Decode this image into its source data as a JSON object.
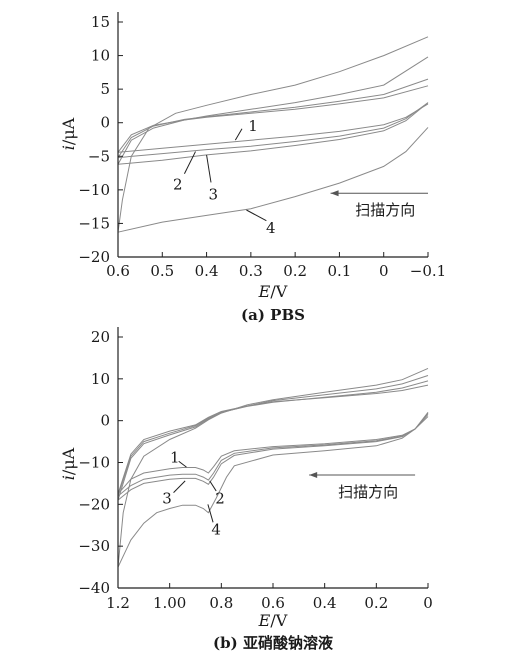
{
  "chart_data": [
    {
      "type": "line",
      "panel_caption": "(a) PBS",
      "xlabel_italic": "E",
      "xlabel_unit": "/V",
      "ylabel_italic": "i",
      "ylabel_unit": "/μA",
      "xlim": [
        0.6,
        -0.1
      ],
      "ylim": [
        -20,
        15
      ],
      "x_ticks": [
        0.6,
        0.5,
        0.4,
        0.3,
        0.2,
        0.1,
        0,
        -0.1
      ],
      "x_tick_labels": [
        "0.6",
        "0.5",
        "0.4",
        "0.3",
        "0.2",
        "0.1",
        "0",
        "−0.1"
      ],
      "y_ticks": [
        15,
        10,
        5,
        0,
        -5,
        -10,
        -15,
        -20
      ],
      "y_tick_labels": [
        "15",
        "10",
        "5",
        "0",
        "−5",
        "−10",
        "−15",
        "−20"
      ],
      "scan_direction_label": "扫描方向",
      "scan_arrow": {
        "from_x": -0.1,
        "to_x": 0.12,
        "y": -10.5
      },
      "series": [
        {
          "label": "1",
          "lower": [
            [
              0.6,
              -4.4
            ],
            [
              0.5,
              -3.8
            ],
            [
              0.4,
              -3.2
            ],
            [
              0.3,
              -2.6
            ],
            [
              0.2,
              -2.0
            ],
            [
              0.1,
              -1.3
            ],
            [
              0.0,
              -0.3
            ],
            [
              -0.05,
              0.8
            ],
            [
              -0.1,
              2.8
            ]
          ],
          "upper": [
            [
              0.6,
              -4.4
            ],
            [
              0.57,
              -1.8
            ],
            [
              0.52,
              -0.4
            ],
            [
              0.45,
              0.4
            ],
            [
              0.4,
              0.8
            ],
            [
              0.3,
              1.4
            ],
            [
              0.2,
              2.0
            ],
            [
              0.1,
              2.8
            ],
            [
              0.0,
              3.7
            ],
            [
              -0.1,
              5.5
            ]
          ],
          "label_pos": [
            0.295,
            -0.5
          ],
          "leader": [
            [
              0.32,
              -0.9
            ],
            [
              0.335,
              -2.6
            ]
          ]
        },
        {
          "label": "2",
          "lower": [
            [
              0.6,
              -5.2
            ],
            [
              0.5,
              -4.6
            ],
            [
              0.4,
              -4.0
            ],
            [
              0.3,
              -3.5
            ],
            [
              0.2,
              -2.8
            ],
            [
              0.1,
              -2.0
            ],
            [
              0.0,
              -0.8
            ],
            [
              -0.05,
              0.6
            ],
            [
              -0.1,
              3.0
            ]
          ],
          "upper": [
            [
              0.6,
              -5.2
            ],
            [
              0.57,
              -2.2
            ],
            [
              0.52,
              -0.5
            ],
            [
              0.45,
              0.5
            ],
            [
              0.4,
              0.9
            ],
            [
              0.3,
              1.6
            ],
            [
              0.2,
              2.3
            ],
            [
              0.1,
              3.2
            ],
            [
              0.0,
              4.2
            ],
            [
              -0.1,
              6.5
            ]
          ],
          "label_pos": [
            0.465,
            -9.2
          ],
          "leader": [
            [
              0.45,
              -7.6
            ],
            [
              0.425,
              -4.3
            ]
          ]
        },
        {
          "label": "3",
          "lower": [
            [
              0.6,
              -6.2
            ],
            [
              0.5,
              -5.6
            ],
            [
              0.4,
              -4.8
            ],
            [
              0.3,
              -4.2
            ],
            [
              0.2,
              -3.4
            ],
            [
              0.1,
              -2.5
            ],
            [
              0.0,
              -1.2
            ],
            [
              -0.05,
              0.3
            ],
            [
              -0.1,
              3.0
            ]
          ],
          "upper": [
            [
              0.6,
              -6.2
            ],
            [
              0.57,
              -2.6
            ],
            [
              0.52,
              -0.8
            ],
            [
              0.45,
              0.4
            ],
            [
              0.4,
              1.0
            ],
            [
              0.3,
              2.0
            ],
            [
              0.2,
              3.0
            ],
            [
              0.1,
              4.2
            ],
            [
              0.0,
              5.6
            ],
            [
              -0.1,
              9.8
            ]
          ],
          "label_pos": [
            0.385,
            -10.7
          ],
          "leader": [
            [
              0.39,
              -8.9
            ],
            [
              0.4,
              -4.8
            ]
          ]
        },
        {
          "label": "4",
          "lower": [
            [
              0.6,
              -16.3
            ],
            [
              0.5,
              -14.8
            ],
            [
              0.4,
              -13.8
            ],
            [
              0.3,
              -12.8
            ],
            [
              0.2,
              -11.0
            ],
            [
              0.1,
              -9.0
            ],
            [
              0.0,
              -6.5
            ],
            [
              -0.05,
              -4.3
            ],
            [
              -0.1,
              -0.7
            ]
          ],
          "upper": [
            [
              0.6,
              -16.3
            ],
            [
              0.59,
              -11.5
            ],
            [
              0.57,
              -5.0
            ],
            [
              0.53,
              -0.8
            ],
            [
              0.47,
              1.4
            ],
            [
              0.4,
              2.6
            ],
            [
              0.3,
              4.2
            ],
            [
              0.2,
              5.6
            ],
            [
              0.1,
              7.6
            ],
            [
              0.0,
              10.0
            ],
            [
              -0.1,
              12.8
            ]
          ],
          "label_pos": [
            0.255,
            -15.7
          ],
          "leader": [
            [
              0.265,
              -14.6
            ],
            [
              0.31,
              -13.0
            ]
          ]
        }
      ]
    },
    {
      "type": "line",
      "panel_caption": "(b) 亚硝酸钠溶液",
      "xlabel_italic": "E",
      "xlabel_unit": "/V",
      "ylabel_italic": "i",
      "ylabel_unit": "/μA",
      "xlim": [
        1.2,
        0
      ],
      "ylim": [
        -40,
        20
      ],
      "x_ticks": [
        1.2,
        1.0,
        0.8,
        0.6,
        0.4,
        0.2,
        0
      ],
      "x_tick_labels": [
        "1.2",
        "1.00",
        "0.8",
        "0.6",
        "0.4",
        "0.2",
        "0"
      ],
      "y_ticks": [
        20,
        10,
        0,
        -10,
        -20,
        -30,
        -40
      ],
      "y_tick_labels": [
        "20",
        "10",
        "0",
        "−10",
        "−20",
        "−30",
        "−40"
      ],
      "scan_direction_label": "扫描方向",
      "scan_arrow": {
        "from_x": 0.05,
        "to_x": 0.46,
        "y": -13
      },
      "series": [
        {
          "label": "1",
          "lower": [
            [
              1.2,
              -17.5
            ],
            [
              1.15,
              -14.0
            ],
            [
              1.1,
              -12.5
            ],
            [
              1.0,
              -11.5
            ],
            [
              0.95,
              -11.2
            ],
            [
              0.9,
              -11.2
            ],
            [
              0.87,
              -11.8
            ],
            [
              0.85,
              -12.5
            ],
            [
              0.83,
              -11.0
            ],
            [
              0.8,
              -8.5
            ],
            [
              0.75,
              -7.2
            ],
            [
              0.6,
              -6.2
            ],
            [
              0.4,
              -5.5
            ],
            [
              0.2,
              -4.5
            ],
            [
              0.1,
              -3.5
            ],
            [
              0.05,
              -2.0
            ],
            [
              0.0,
              1.5
            ]
          ],
          "upper": [
            [
              1.2,
              -17.5
            ],
            [
              1.15,
              -8.0
            ],
            [
              1.1,
              -4.5
            ],
            [
              1.0,
              -2.5
            ],
            [
              0.9,
              -1.0
            ],
            [
              0.85,
              0.8
            ],
            [
              0.8,
              2.2
            ],
            [
              0.7,
              3.5
            ],
            [
              0.6,
              4.5
            ],
            [
              0.4,
              5.5
            ],
            [
              0.2,
              6.5
            ],
            [
              0.1,
              7.2
            ],
            [
              0.0,
              8.5
            ]
          ],
          "label_pos": [
            0.98,
            -8.8
          ],
          "leader": [
            [
              0.965,
              -9.7
            ],
            [
              0.935,
              -11.1
            ]
          ]
        },
        {
          "label": "2",
          "lower": [
            [
              1.2,
              -18.0
            ],
            [
              1.15,
              -15.5
            ],
            [
              1.1,
              -14.0
            ],
            [
              1.0,
              -13.0
            ],
            [
              0.95,
              -12.8
            ],
            [
              0.9,
              -12.8
            ],
            [
              0.87,
              -13.5
            ],
            [
              0.85,
              -14.2
            ],
            [
              0.83,
              -12.5
            ],
            [
              0.8,
              -9.5
            ],
            [
              0.75,
              -7.8
            ],
            [
              0.6,
              -6.5
            ],
            [
              0.4,
              -5.8
            ],
            [
              0.2,
              -4.8
            ],
            [
              0.1,
              -3.7
            ],
            [
              0.05,
              -2.0
            ],
            [
              0.0,
              1.8
            ]
          ],
          "upper": [
            [
              1.2,
              -18.0
            ],
            [
              1.15,
              -8.5
            ],
            [
              1.1,
              -5.0
            ],
            [
              1.0,
              -3.0
            ],
            [
              0.9,
              -1.2
            ],
            [
              0.85,
              0.6
            ],
            [
              0.8,
              2.0
            ],
            [
              0.7,
              3.4
            ],
            [
              0.6,
              4.4
            ],
            [
              0.4,
              5.6
            ],
            [
              0.2,
              6.8
            ],
            [
              0.1,
              7.8
            ],
            [
              0.0,
              9.5
            ]
          ],
          "label_pos": [
            0.805,
            -18.6
          ],
          "leader": [
            [
              0.82,
              -16.8
            ],
            [
              0.845,
              -14.4
            ]
          ]
        },
        {
          "label": "3",
          "lower": [
            [
              1.2,
              -19.0
            ],
            [
              1.15,
              -16.5
            ],
            [
              1.1,
              -15.0
            ],
            [
              1.0,
              -14.0
            ],
            [
              0.95,
              -13.8
            ],
            [
              0.9,
              -13.8
            ],
            [
              0.87,
              -14.5
            ],
            [
              0.85,
              -15.2
            ],
            [
              0.83,
              -13.5
            ],
            [
              0.8,
              -10.3
            ],
            [
              0.75,
              -8.3
            ],
            [
              0.6,
              -6.8
            ],
            [
              0.4,
              -6.0
            ],
            [
              0.2,
              -5.0
            ],
            [
              0.1,
              -3.8
            ],
            [
              0.05,
              -2.0
            ],
            [
              0.0,
              2.0
            ]
          ],
          "upper": [
            [
              1.2,
              -19.0
            ],
            [
              1.15,
              -9.0
            ],
            [
              1.1,
              -5.5
            ],
            [
              1.0,
              -3.4
            ],
            [
              0.9,
              -1.5
            ],
            [
              0.85,
              0.4
            ],
            [
              0.8,
              1.9
            ],
            [
              0.7,
              3.5
            ],
            [
              0.6,
              4.8
            ],
            [
              0.4,
              6.2
            ],
            [
              0.2,
              7.6
            ],
            [
              0.1,
              8.8
            ],
            [
              0.0,
              10.8
            ]
          ],
          "label_pos": [
            1.01,
            -18.6
          ],
          "leader": [
            [
              0.985,
              -17.2
            ],
            [
              0.94,
              -14.4
            ]
          ]
        },
        {
          "label": "4",
          "lower": [
            [
              1.2,
              -35.0
            ],
            [
              1.15,
              -28.5
            ],
            [
              1.1,
              -24.5
            ],
            [
              1.05,
              -22.0
            ],
            [
              1.0,
              -21.0
            ],
            [
              0.95,
              -20.2
            ],
            [
              0.9,
              -20.2
            ],
            [
              0.87,
              -21.0
            ],
            [
              0.85,
              -22.0
            ],
            [
              0.82,
              -18.5
            ],
            [
              0.78,
              -13.5
            ],
            [
              0.75,
              -10.8
            ],
            [
              0.6,
              -8.2
            ],
            [
              0.4,
              -7.2
            ],
            [
              0.2,
              -6.0
            ],
            [
              0.1,
              -4.2
            ],
            [
              0.05,
              -2.0
            ],
            [
              0.0,
              1.0
            ]
          ],
          "upper": [
            [
              1.2,
              -35.0
            ],
            [
              1.18,
              -22.0
            ],
            [
              1.15,
              -14.0
            ],
            [
              1.1,
              -8.5
            ],
            [
              1.0,
              -4.5
            ],
            [
              0.9,
              -1.8
            ],
            [
              0.85,
              0.2
            ],
            [
              0.8,
              1.8
            ],
            [
              0.7,
              3.8
            ],
            [
              0.6,
              5.0
            ],
            [
              0.4,
              6.8
            ],
            [
              0.2,
              8.5
            ],
            [
              0.1,
              9.8
            ],
            [
              0.0,
              12.5
            ]
          ],
          "label_pos": [
            0.82,
            -26.0
          ],
          "leader": [
            [
              0.832,
              -24.3
            ],
            [
              0.852,
              -20.0
            ]
          ]
        }
      ]
    }
  ]
}
